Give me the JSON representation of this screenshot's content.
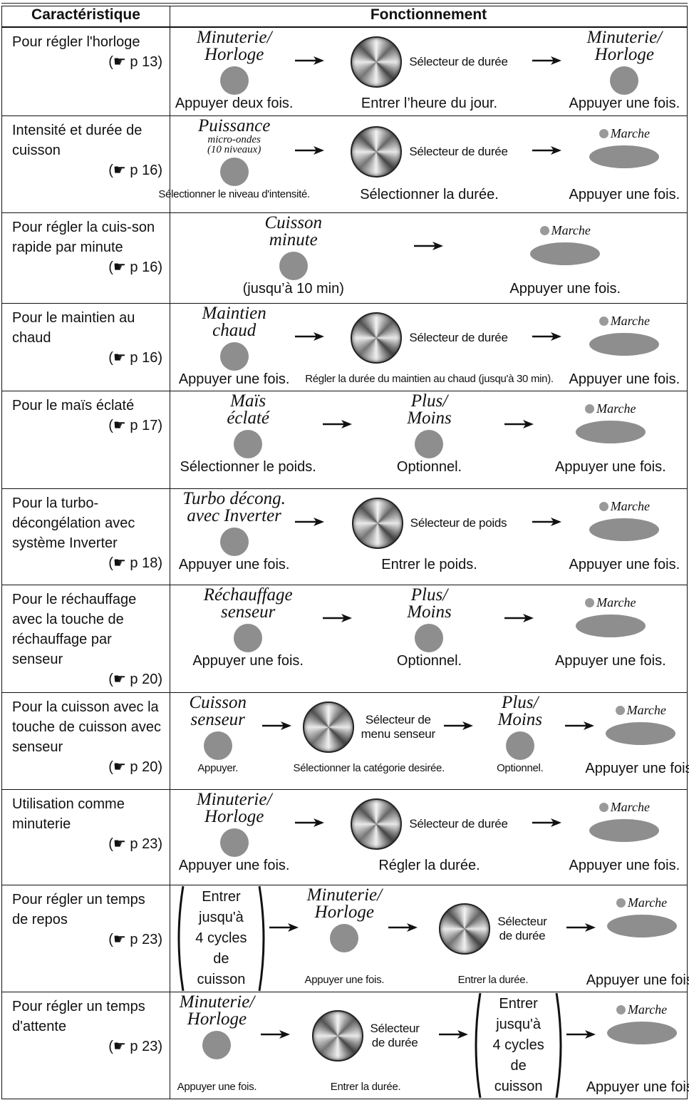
{
  "table": {
    "headers": [
      "Caractéristique",
      "Fonctionnement"
    ],
    "rows": [
      {
        "feature": "Pour régler l'horloge",
        "page": "(☛ p 13)",
        "steps": [
          {
            "kind": "button",
            "label": "Minuterie/\nHorloge",
            "caption": "Appuyer deux fois."
          },
          {
            "kind": "dial",
            "label": "Sélecteur de durée",
            "caption": "Entrer l’heure du jour."
          },
          {
            "kind": "button",
            "label": "Minuterie/\nHorloge",
            "caption": "Appuyer une fois."
          }
        ]
      },
      {
        "feature": "Intensité et durée de cuisson",
        "page": "(☛ p 16)",
        "steps": [
          {
            "kind": "button",
            "label": "Puissance",
            "sublabel": "micro-ondes\n(10 niveaux)",
            "caption": "Sélectionner le niveau d'intensité."
          },
          {
            "kind": "dial",
            "label": "Sélecteur de durée",
            "caption": "Sélectionner la durée."
          },
          {
            "kind": "start",
            "label": "Marche",
            "caption": "Appuyer une fois."
          }
        ]
      },
      {
        "feature": "Pour régler la cuis-son rapide par minute",
        "page": "(☛ p 16)",
        "steps": [
          {
            "kind": "button",
            "label": "Cuisson\nminute",
            "caption": "(jusqu’à 10 min)"
          },
          {
            "kind": "start",
            "label": "Marche",
            "caption": "Appuyer une fois."
          }
        ]
      },
      {
        "feature": "Pour le maintien au chaud",
        "page": "(☛ p 16)",
        "steps": [
          {
            "kind": "button",
            "label": "Maintien\nchaud",
            "caption": "Appuyer une fois."
          },
          {
            "kind": "dial",
            "label": "Sélecteur de durée",
            "caption": "Régler la durée du maintien au chaud (jusqu'à 30 min)."
          },
          {
            "kind": "start",
            "label": "Marche",
            "caption": "Appuyer une fois."
          }
        ]
      },
      {
        "feature": "Pour le maïs éclaté",
        "page": "(☛ p 17)",
        "steps": [
          {
            "kind": "button",
            "label": "Maïs\néclaté",
            "caption": "Sélectionner le poids."
          },
          {
            "kind": "button",
            "label": "Plus/\nMoins",
            "caption": "Optionnel."
          },
          {
            "kind": "start",
            "label": "Marche",
            "caption": "Appuyer une fois."
          }
        ]
      },
      {
        "feature": "Pour la turbo-décongélation avec système Inverter",
        "page": "(☛ p 18)",
        "steps": [
          {
            "kind": "button",
            "label": "Turbo décong.\navec Inverter",
            "caption": "Appuyer une fois."
          },
          {
            "kind": "dial",
            "label": "Sélecteur de poids",
            "caption": "Entrer le poids."
          },
          {
            "kind": "start",
            "label": "Marche",
            "caption": "Appuyer une fois."
          }
        ]
      },
      {
        "feature": "Pour le réchauffage avec la touche de réchauffage par senseur",
        "page": "(☛ p 20)",
        "steps": [
          {
            "kind": "button",
            "label": "Réchauffage\nsenseur",
            "caption": "Appuyer une fois."
          },
          {
            "kind": "button",
            "label": "Plus/\nMoins",
            "caption": "Optionnel."
          },
          {
            "kind": "start",
            "label": "Marche",
            "caption": "Appuyer une fois."
          }
        ]
      },
      {
        "feature": "Pour la cuisson avec la touche de cuisson avec senseur",
        "page": "(☛ p 20)",
        "steps": [
          {
            "kind": "button",
            "label": "Cuisson\nsenseur",
            "caption": "Appuyer."
          },
          {
            "kind": "dial",
            "label": "Sélecteur de\nmenu senseur",
            "caption": "Sélectionner la catégorie desirée."
          },
          {
            "kind": "button",
            "label": "Plus/\nMoins",
            "caption": "Optionnel."
          },
          {
            "kind": "start",
            "label": "Marche",
            "caption": "Appuyer une fois."
          }
        ]
      },
      {
        "feature": "Utilisation comme minuterie",
        "page": "(☛ p 23)",
        "steps": [
          {
            "kind": "button",
            "label": "Minuterie/\nHorloge",
            "caption": "Appuyer une fois."
          },
          {
            "kind": "dial",
            "label": "Sélecteur de durée",
            "caption": "Régler la durée."
          },
          {
            "kind": "start",
            "label": "Marche",
            "caption": "Appuyer une fois."
          }
        ]
      },
      {
        "feature": "Pour régler un temps de repos",
        "page": "(☛ p 23)",
        "steps": [
          {
            "kind": "paren",
            "label": "Entrer jusqu'à\n4 cycles de\ncuisson"
          },
          {
            "kind": "button",
            "label": "Minuterie/\nHorloge",
            "caption": "Appuyer une fois."
          },
          {
            "kind": "dial",
            "label": "Sélecteur\nde durée",
            "caption": "Entrer la durée."
          },
          {
            "kind": "start",
            "label": "Marche",
            "caption": "Appuyer une fois."
          }
        ]
      },
      {
        "feature": "Pour régler un temps d'attente",
        "page": "(☛ p 23)",
        "steps": [
          {
            "kind": "button",
            "label": "Minuterie/\nHorloge",
            "caption": "Appuyer une fois."
          },
          {
            "kind": "dial",
            "label": "Sélecteur\nde durée",
            "caption": "Entrer la durée."
          },
          {
            "kind": "paren",
            "label": "Entrer jusqu'à\n4 cycles de\ncuisson"
          },
          {
            "kind": "start",
            "label": "Marche",
            "caption": "Appuyer une fois."
          }
        ]
      }
    ]
  }
}
